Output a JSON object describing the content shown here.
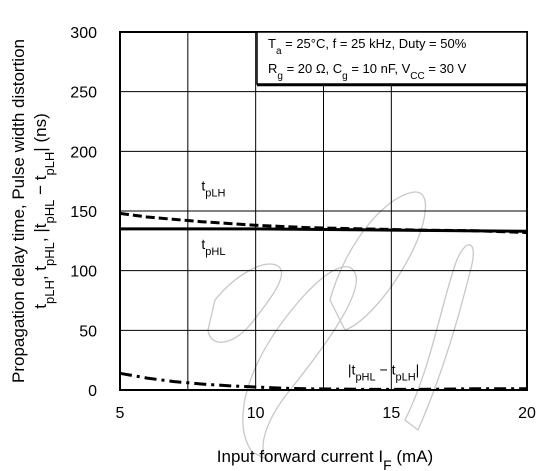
{
  "chart_data": {
    "type": "line",
    "xlabel": {
      "text": "Input forward current",
      "var_main": "I",
      "var_sub": "F",
      "unit": "(mA)"
    },
    "ylabel": {
      "line1": "Propagation delay time, Pulse width distortion",
      "line2_parts": [
        {
          "t": "t"
        },
        {
          "t": "pLH",
          "sub": true
        },
        {
          "t": ", t"
        },
        {
          "t": "pHL",
          "sub": true
        },
        {
          "t": ", |t"
        },
        {
          "t": "pHL",
          "sub": true
        },
        {
          "t": " − t"
        },
        {
          "t": "pLH",
          "sub": true
        },
        {
          "t": "|   (ns)"
        }
      ]
    },
    "xlim": [
      5,
      20
    ],
    "ylim": [
      0,
      300
    ],
    "x_ticks": [
      5,
      10,
      15,
      20
    ],
    "x_tick_labels": [
      "5",
      "10",
      "15",
      "20"
    ],
    "x_minor_grid": [
      7.5,
      12.5
    ],
    "y_ticks": [
      0,
      50,
      100,
      150,
      200,
      250,
      300
    ],
    "y_tick_labels": [
      "0",
      "50",
      "100",
      "150",
      "200",
      "250",
      "300"
    ],
    "grid": true,
    "conditions": {
      "line1_parts": [
        {
          "t": "T"
        },
        {
          "t": "a",
          "sub": true
        },
        {
          "t": " = 25°C, f = 25 kHz, Duty = 50%"
        }
      ],
      "line2_parts": [
        {
          "t": "R"
        },
        {
          "t": "g",
          "sub": true
        },
        {
          "t": " = 20 Ω, C"
        },
        {
          "t": "g",
          "sub": true
        },
        {
          "t": " = 10 nF, V"
        },
        {
          "t": "CC",
          "sub": true
        },
        {
          "t": " = 30 V"
        }
      ]
    },
    "series": [
      {
        "name_parts": [
          {
            "t": "t"
          },
          {
            "t": "pLH",
            "sub": true
          }
        ],
        "label_at": [
          8,
          167
        ],
        "style": "dashed",
        "color": "#000000",
        "x": [
          5,
          6,
          7,
          8,
          9,
          10,
          12,
          14,
          16,
          18,
          20
        ],
        "y": [
          148,
          145,
          143,
          141,
          139.5,
          138,
          136,
          135,
          134,
          133.5,
          132
        ]
      },
      {
        "name_parts": [
          {
            "t": "t"
          },
          {
            "t": "pHL",
            "sub": true
          }
        ],
        "label_at": [
          8,
          118
        ],
        "style": "solid",
        "color": "#000000",
        "x": [
          5,
          10,
          15,
          20
        ],
        "y": [
          135,
          135,
          134,
          133
        ]
      },
      {
        "name_parts": [
          {
            "t": "|t"
          },
          {
            "t": "pHL",
            "sub": true
          },
          {
            "t": " − t"
          },
          {
            "t": "pLH",
            "sub": true
          },
          {
            "t": "|"
          }
        ],
        "label_at": [
          13.4,
          13
        ],
        "style": "dashdot",
        "color": "#000000",
        "x": [
          5,
          6,
          7,
          8,
          9,
          10,
          11,
          12,
          14,
          16,
          18,
          20
        ],
        "y": [
          14,
          10,
          7,
          5,
          3.5,
          2.5,
          1.5,
          1,
          0.5,
          0.5,
          1,
          1
        ]
      }
    ]
  }
}
